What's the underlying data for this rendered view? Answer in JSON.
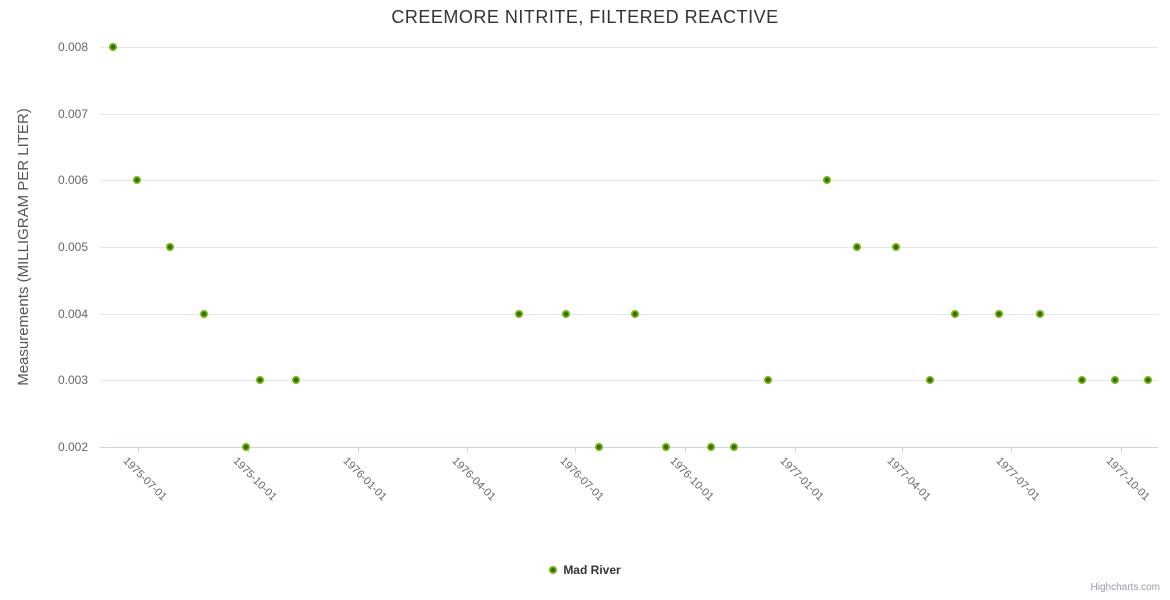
{
  "title": "CREEMORE NITRITE, FILTERED REACTIVE",
  "legend": {
    "series_label": "Mad River"
  },
  "credits": {
    "label": "Highcharts.com"
  },
  "colors": {
    "title": "#333333",
    "axis_label": "#666666",
    "axis_title": "#555555",
    "gridline": "#e6e6e6",
    "axis_line": "#ccd6eb",
    "marker_outer": "#7cb414",
    "marker_center": "#2e6b01",
    "background": "#ffffff",
    "credits": "#999aa8"
  },
  "chart_data": {
    "type": "scatter",
    "library_look": "Highcharts",
    "title": "CREEMORE NITRITE, FILTERED REACTIVE",
    "xlabel": "",
    "ylabel": "Measurements (MILLIGRAM PER LITER)",
    "grid": true,
    "legend_position": "bottom-center",
    "x_type": "datetime",
    "x_range": [
      "1975-05-30",
      "1977-11-01"
    ],
    "x_ticks": [
      "1975-07-01",
      "1975-10-01",
      "1976-01-01",
      "1976-04-01",
      "1976-07-01",
      "1976-10-01",
      "1977-01-01",
      "1977-04-01",
      "1977-07-01",
      "1977-10-01"
    ],
    "ylim": [
      0.002,
      0.008
    ],
    "y_ticks": [
      0.002,
      0.003,
      0.004,
      0.005,
      0.006,
      0.007,
      0.008
    ],
    "y_tick_decimals": 3,
    "series": [
      {
        "name": "Mad River",
        "points": [
          [
            "1975-06-10",
            0.008
          ],
          [
            "1975-06-30",
            0.006
          ],
          [
            "1975-07-28",
            0.005
          ],
          [
            "1975-08-25",
            0.004
          ],
          [
            "1975-09-29",
            0.002
          ],
          [
            "1975-10-11",
            0.003
          ],
          [
            "1975-11-10",
            0.003
          ],
          [
            "1976-05-15",
            0.004
          ],
          [
            "1976-06-23",
            0.004
          ],
          [
            "1976-07-21",
            0.002
          ],
          [
            "1976-08-20",
            0.004
          ],
          [
            "1976-09-15",
            0.002
          ],
          [
            "1976-10-23",
            0.002
          ],
          [
            "1976-11-11",
            0.002
          ],
          [
            "1976-12-09",
            0.003
          ],
          [
            "1977-01-28",
            0.006
          ],
          [
            "1977-02-22",
            0.005
          ],
          [
            "1977-03-27",
            0.005
          ],
          [
            "1977-04-24",
            0.003
          ],
          [
            "1977-05-15",
            0.004
          ],
          [
            "1977-06-21",
            0.004
          ],
          [
            "1977-07-25",
            0.004
          ],
          [
            "1977-08-29",
            0.003
          ],
          [
            "1977-09-26",
            0.003
          ],
          [
            "1977-10-24",
            0.003
          ]
        ]
      }
    ]
  }
}
